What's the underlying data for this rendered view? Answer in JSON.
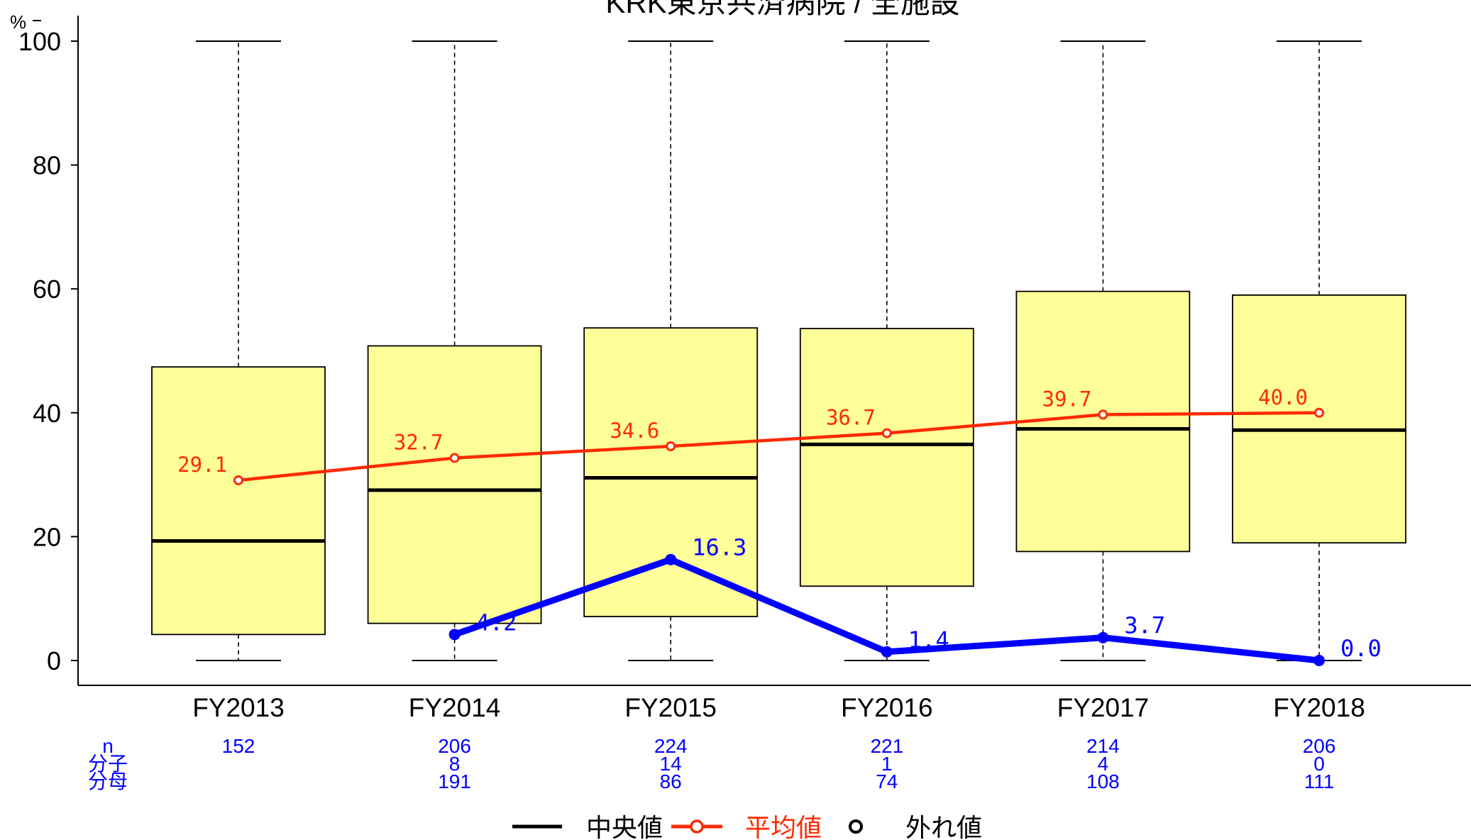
{
  "chart_data": {
    "type": "box",
    "title": "KRK東京共済病院 / 全施設",
    "ylabel": "%",
    "ylim": [
      0,
      100
    ],
    "yticks": [
      0,
      20,
      40,
      60,
      80,
      100
    ],
    "categories": [
      "FY2013",
      "FY2014",
      "FY2015",
      "FY2016",
      "FY2017",
      "FY2018"
    ],
    "boxes": [
      {
        "whisker_low": 0,
        "q1": 4.2,
        "median": 19.3,
        "q3": 47.4,
        "whisker_high": 100
      },
      {
        "whisker_low": 0,
        "q1": 6.0,
        "median": 27.5,
        "q3": 50.8,
        "whisker_high": 100
      },
      {
        "whisker_low": 0,
        "q1": 7.1,
        "median": 29.5,
        "q3": 53.7,
        "whisker_high": 100
      },
      {
        "whisker_low": 0,
        "q1": 12.0,
        "median": 34.9,
        "q3": 53.6,
        "whisker_high": 100
      },
      {
        "whisker_low": 0,
        "q1": 17.6,
        "median": 37.4,
        "q3": 59.6,
        "whisker_high": 100
      },
      {
        "whisker_low": 0,
        "q1": 19.0,
        "median": 37.2,
        "q3": 59.0,
        "whisker_high": 100
      }
    ],
    "series": [
      {
        "name": "平均値",
        "color": "#ff2a00",
        "points": [
          {
            "x": "FY2013",
            "y": 29.1,
            "label": "29.1"
          },
          {
            "x": "FY2014",
            "y": 32.7,
            "label": "32.7"
          },
          {
            "x": "FY2015",
            "y": 34.6,
            "label": "34.6"
          },
          {
            "x": "FY2016",
            "y": 36.7,
            "label": "36.7"
          },
          {
            "x": "FY2017",
            "y": 39.7,
            "label": "39.7"
          },
          {
            "x": "FY2018",
            "y": 40.0,
            "label": "40.0"
          }
        ]
      },
      {
        "name": "",
        "color": "#0000ff",
        "points": [
          {
            "x": "FY2014",
            "y": 4.2,
            "label": "4.2"
          },
          {
            "x": "FY2015",
            "y": 16.3,
            "label": "16.3"
          },
          {
            "x": "FY2016",
            "y": 1.4,
            "label": "1.4"
          },
          {
            "x": "FY2017",
            "y": 3.7,
            "label": "3.7"
          },
          {
            "x": "FY2018",
            "y": 0.0,
            "label": "0.0"
          }
        ]
      }
    ],
    "table": {
      "row_labels": [
        "n",
        "分子",
        "分母"
      ],
      "n": [
        "152",
        "206",
        "224",
        "221",
        "214",
        "206"
      ],
      "numerator": [
        "",
        "8",
        "14",
        "1",
        "4",
        "0"
      ],
      "denominator": [
        "",
        "191",
        "86",
        "74",
        "108",
        "111"
      ]
    },
    "legend": {
      "position": "bottom",
      "items": [
        {
          "label": "中央値",
          "color": "#000000"
        },
        {
          "label": "平均値",
          "color": "#ff2a00"
        },
        {
          "label": "外れ値",
          "color": "#000000"
        }
      ]
    },
    "box_fill": "#ffff99",
    "grid": false
  }
}
